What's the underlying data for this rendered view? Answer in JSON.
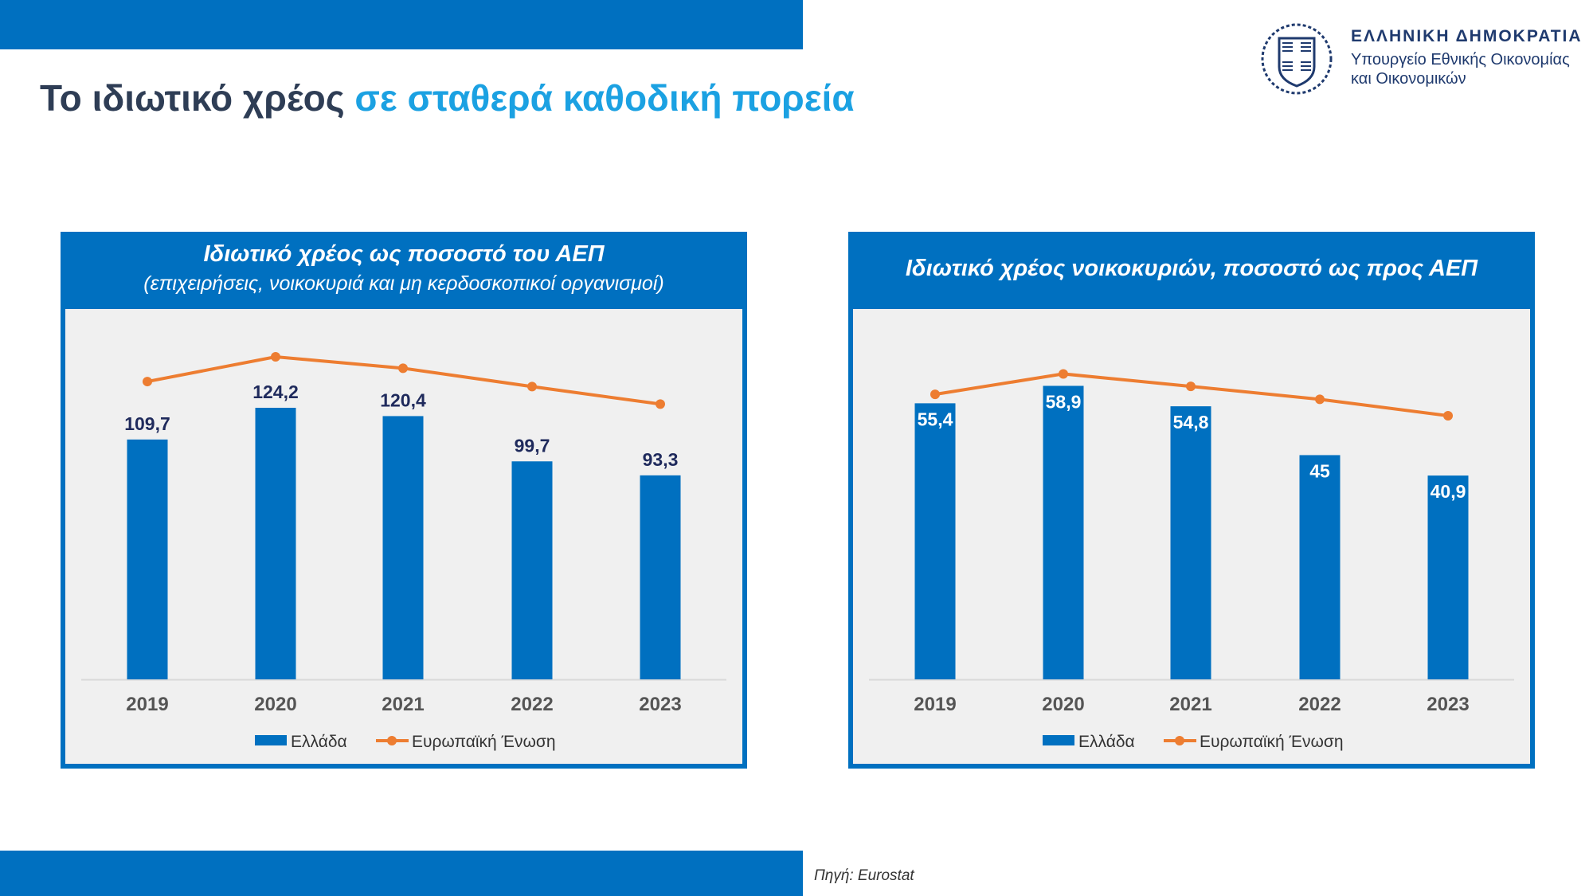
{
  "header": {
    "title_main": "Το ιδιωτικό χρέος",
    "title_accent": "σε σταθερά καθοδική πορεία"
  },
  "logo": {
    "line1": "ΕΛΛΗΝΙΚΗ ΔΗΜΟΚΡΑΤΙΑ",
    "line2": "Υπουργείο Εθνικής Οικονομίας",
    "line3": "και Οικονομικών"
  },
  "footer": {
    "source": "Πηγή: Eurostat"
  },
  "colors": {
    "greece": "#0070c0",
    "eu": "#ed7d31",
    "label_dark": "#1f2a5c"
  },
  "chart_data": [
    {
      "type": "bar",
      "title": "Ιδιωτικό χρέος ως ποσοστό του ΑΕΠ",
      "subtitle": "(επιχειρήσεις, νοικοκυριά και μη κερδοσκοπικοί οργανισμοί)",
      "categories": [
        "2019",
        "2020",
        "2021",
        "2022",
        "2023"
      ],
      "series": [
        {
          "name": "Ελλάδα",
          "type": "bar",
          "values": [
            109.7,
            124.2,
            120.4,
            99.7,
            93.3
          ],
          "labels": [
            "109,7",
            "124,2",
            "120,4",
            "99,7",
            "93,3"
          ]
        },
        {
          "name": "Ευρωπαϊκή Ένωση",
          "type": "line",
          "values": [
            136.2,
            147.5,
            142.3,
            133.9,
            125.9
          ]
        }
      ],
      "ylim": [
        0,
        165
      ],
      "label_style": "above",
      "legend": "bottom",
      "grid": false
    },
    {
      "type": "bar",
      "title": "Ιδιωτικό χρέος νοικοκυριών, ποσοστό ως προς ΑΕΠ",
      "subtitle": "",
      "categories": [
        "2019",
        "2020",
        "2021",
        "2022",
        "2023"
      ],
      "series": [
        {
          "name": "Ελλάδα",
          "type": "bar",
          "values": [
            55.4,
            58.9,
            54.8,
            45,
            40.9
          ],
          "labels": [
            "55,4",
            "58,9",
            "54,8",
            "45",
            "40,9"
          ]
        },
        {
          "name": "Ευρωπαϊκή Ένωση",
          "type": "line",
          "values": [
            57.2,
            61.3,
            58.8,
            56.2,
            52.9
          ]
        }
      ],
      "ylim": [
        0,
        72.4
      ],
      "label_style": "inside",
      "legend": "bottom",
      "grid": false
    }
  ]
}
